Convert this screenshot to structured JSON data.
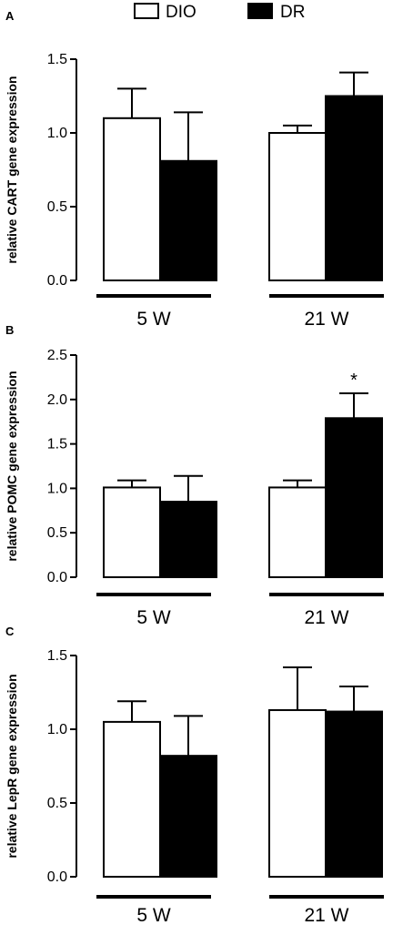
{
  "legend": {
    "items": [
      {
        "label": "DIO",
        "fill": "#ffffff"
      },
      {
        "label": "DR",
        "fill": "#000000"
      }
    ]
  },
  "chart_data": [
    {
      "panel": "A",
      "type": "bar",
      "ylabel": "relative CART gene expression",
      "ylim": [
        0,
        1.5
      ],
      "yticks": [
        "0.0",
        "0.5",
        "1.0",
        "1.5"
      ],
      "categories": [
        "5 W",
        "21 W"
      ],
      "series": [
        {
          "name": "DIO",
          "values": [
            1.1,
            1.0
          ],
          "errors": [
            0.2,
            0.05
          ]
        },
        {
          "name": "DR",
          "values": [
            0.81,
            1.25
          ],
          "errors": [
            0.33,
            0.16
          ]
        }
      ],
      "annotations": []
    },
    {
      "panel": "B",
      "type": "bar",
      "ylabel": "relative POMC gene expression",
      "ylim": [
        0,
        2.5
      ],
      "yticks": [
        "0.0",
        "0.5",
        "1.0",
        "1.5",
        "2.0",
        "2.5"
      ],
      "categories": [
        "5 W",
        "21 W"
      ],
      "series": [
        {
          "name": "DIO",
          "values": [
            1.01,
            1.01
          ],
          "errors": [
            0.08,
            0.08
          ]
        },
        {
          "name": "DR",
          "values": [
            0.85,
            1.79
          ],
          "errors": [
            0.29,
            0.28
          ]
        }
      ],
      "annotations": [
        {
          "text": "*",
          "category": "21 W",
          "series": "DR"
        }
      ]
    },
    {
      "panel": "C",
      "type": "bar",
      "ylabel": "relative LepR gene expression",
      "ylim": [
        0,
        1.5
      ],
      "yticks": [
        "0.0",
        "0.5",
        "1.0",
        "1.5"
      ],
      "categories": [
        "5 W",
        "21 W"
      ],
      "series": [
        {
          "name": "DIO",
          "values": [
            1.05,
            1.13
          ],
          "errors": [
            0.14,
            0.29
          ]
        },
        {
          "name": "DR",
          "values": [
            0.82,
            1.12
          ],
          "errors": [
            0.27,
            0.17
          ]
        }
      ],
      "annotations": []
    }
  ]
}
